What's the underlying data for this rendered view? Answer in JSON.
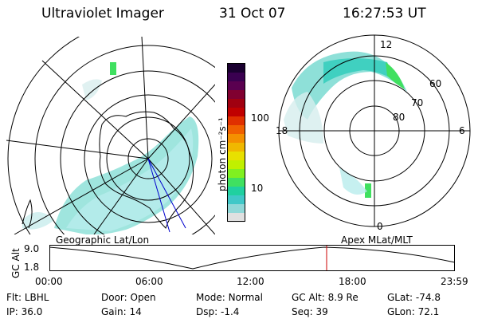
{
  "header": {
    "instrument": "Ultraviolet Imager",
    "date": "31 Oct 07",
    "time": "16:27:53 UT"
  },
  "left_map": {
    "label": "Geographic Lat/Lon"
  },
  "right_map": {
    "label": "Apex  MLat/MLT",
    "lat_labels": [
      "60",
      "70",
      "80"
    ],
    "mlt_labels": [
      "12",
      "18",
      "6",
      "0"
    ]
  },
  "colorbar": {
    "unit_label": "photon cm⁻²s⁻¹",
    "tick_labels": [
      "100",
      "10"
    ],
    "colors": [
      "#1a0030",
      "#3a0050",
      "#5a0050",
      "#800030",
      "#a00010",
      "#c00000",
      "#e03000",
      "#f06000",
      "#f49000",
      "#f0b800",
      "#e8e000",
      "#c0f000",
      "#80f020",
      "#40e060",
      "#20d0a0",
      "#40c8c8",
      "#90d8d8",
      "#e0e0e0"
    ]
  },
  "altitude_plot": {
    "y_axis_label": "GC Alt",
    "y_ticks": [
      "9.0",
      "1.8"
    ],
    "x_ticks": [
      "00:00",
      "06:00",
      "12:00",
      "18:00",
      "23:59"
    ],
    "current_time_marker": "16:27:53"
  },
  "status": {
    "row1": [
      {
        "label": "Flt:",
        "value": "LBHL"
      },
      {
        "label": "Door:",
        "value": "Open"
      },
      {
        "label": "Mode:",
        "value": "Normal"
      },
      {
        "label": "GC Alt:",
        "value": "8.9 Re"
      },
      {
        "label": "GLat:",
        "value": "-74.8"
      }
    ],
    "row2": [
      {
        "label": "IP:",
        "value": "36.0"
      },
      {
        "label": "Gain:",
        "value": "14"
      },
      {
        "label": "Dsp:",
        "value": "-1.4"
      },
      {
        "label": "Seq:",
        "value": "39"
      },
      {
        "label": "GLon:",
        "value": "72.1"
      }
    ]
  }
}
